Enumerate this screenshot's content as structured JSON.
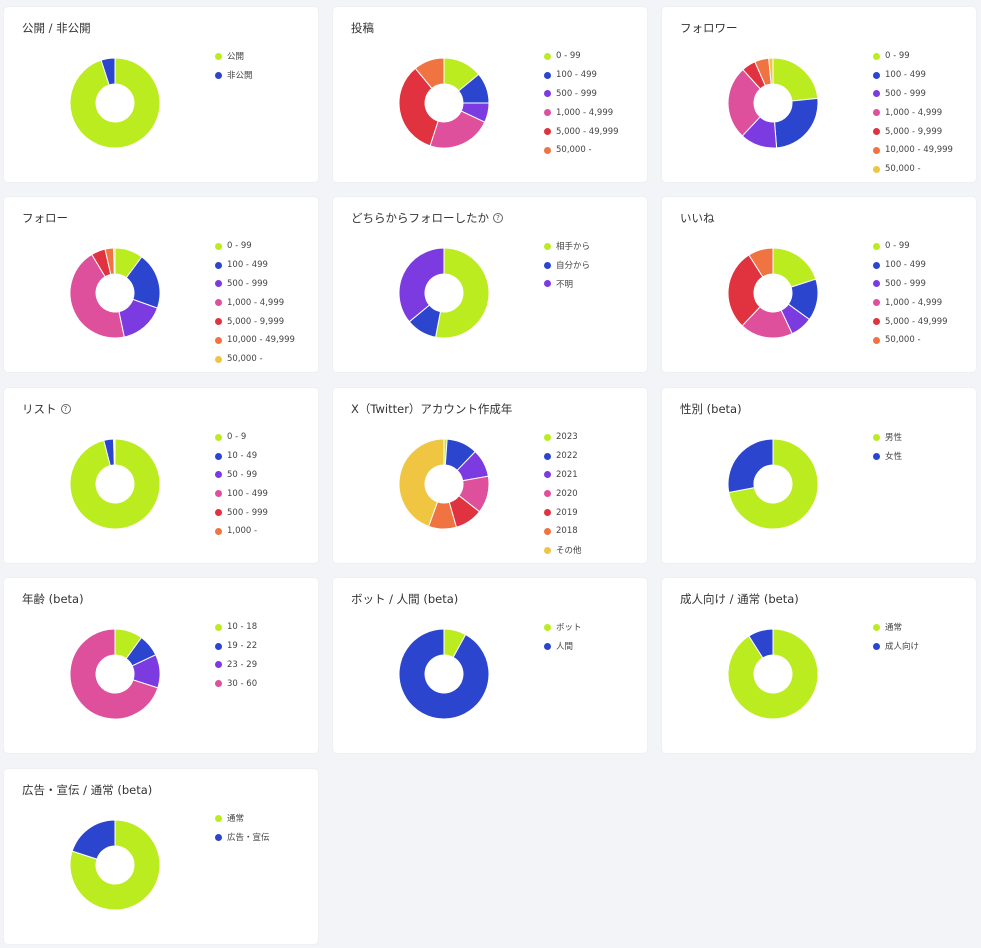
{
  "colors": {
    "lime": "#bbec1f",
    "blue": "#2b45cf",
    "purple": "#7b3be0",
    "pink": "#de4f9c",
    "red": "#e0323f",
    "orange": "#ef7441",
    "yellow": "#f0c541"
  },
  "charts": [
    {
      "title": "公開 / 非公開",
      "help": false,
      "chart_data": {
        "type": "pie",
        "labels": [
          "公開",
          "非公開"
        ],
        "colors": [
          "#bbec1f",
          "#2b45cf"
        ],
        "values": [
          95,
          5
        ]
      }
    },
    {
      "title": "投稿",
      "help": false,
      "chart_data": {
        "type": "pie",
        "labels": [
          "0 - 99",
          "100 - 499",
          "500 - 999",
          "1,000 - 4,999",
          "5,000 - 49,999",
          "50,000 -"
        ],
        "colors": [
          "#bbec1f",
          "#2b45cf",
          "#7b3be0",
          "#de4f9c",
          "#e0323f",
          "#ef7441"
        ],
        "values": [
          14,
          11,
          7,
          23,
          34,
          11
        ]
      }
    },
    {
      "title": "フォロワー",
      "help": false,
      "chart_data": {
        "type": "pie",
        "labels": [
          "0 - 99",
          "100 - 499",
          "500 - 999",
          "1,000 - 4,999",
          "5,000 - 9,999",
          "10,000 - 49,999",
          "50,000 -"
        ],
        "colors": [
          "#bbec1f",
          "#2b45cf",
          "#7b3be0",
          "#de4f9c",
          "#e0323f",
          "#ef7441",
          "#f0c541"
        ],
        "values": [
          23,
          25,
          13,
          26,
          5,
          5,
          1.5
        ]
      }
    },
    {
      "title": "フォロー",
      "help": false,
      "chart_data": {
        "type": "pie",
        "labels": [
          "0 - 99",
          "100 - 499",
          "500 - 999",
          "1,000 - 4,999",
          "5,000 - 9,999",
          "10,000 - 49,999",
          "50,000 -"
        ],
        "colors": [
          "#bbec1f",
          "#2b45cf",
          "#7b3be0",
          "#de4f9c",
          "#e0323f",
          "#ef7441",
          "#f0c541"
        ],
        "values": [
          10,
          20,
          16,
          44,
          5,
          3,
          0.5
        ]
      }
    },
    {
      "title": "どちらからフォローしたか",
      "help": true,
      "chart_data": {
        "type": "pie",
        "labels": [
          "相手から",
          "自分から",
          "不明"
        ],
        "colors": [
          "#bbec1f",
          "#2b45cf",
          "#7b3be0"
        ],
        "values": [
          53,
          11,
          36
        ]
      }
    },
    {
      "title": "いいね",
      "help": false,
      "chart_data": {
        "type": "pie",
        "labels": [
          "0 - 99",
          "100 - 499",
          "500 - 999",
          "1,000 - 4,999",
          "5,000 - 49,999",
          "50,000 -"
        ],
        "colors": [
          "#bbec1f",
          "#2b45cf",
          "#7b3be0",
          "#de4f9c",
          "#e0323f",
          "#ef7441"
        ],
        "values": [
          20,
          15,
          8,
          19,
          29,
          9
        ]
      }
    },
    {
      "title": "リスト",
      "help": true,
      "chart_data": {
        "type": "pie",
        "labels": [
          "0 - 9",
          "10 - 49",
          "50 - 99",
          "100 - 499",
          "500 - 999",
          "1,000 -"
        ],
        "colors": [
          "#bbec1f",
          "#2b45cf",
          "#7b3be0",
          "#de4f9c",
          "#e0323f",
          "#ef7441"
        ],
        "values": [
          96,
          3.5,
          0.3,
          0.1,
          0.05,
          0.05
        ]
      }
    },
    {
      "title": "X（Twitter）アカウント作成年",
      "help": false,
      "chart_data": {
        "type": "pie",
        "labels": [
          "2023",
          "2022",
          "2021",
          "2020",
          "2019",
          "2018",
          "その他"
        ],
        "colors": [
          "#bbec1f",
          "#2b45cf",
          "#7b3be0",
          "#de4f9c",
          "#e0323f",
          "#ef7441",
          "#f0c541"
        ],
        "values": [
          1,
          10,
          9,
          12,
          9,
          9,
          40
        ]
      }
    },
    {
      "title": "性別 (beta)",
      "help": false,
      "chart_data": {
        "type": "pie",
        "labels": [
          "男性",
          "女性"
        ],
        "colors": [
          "#bbec1f",
          "#2b45cf"
        ],
        "values": [
          72,
          28
        ]
      }
    },
    {
      "title": "年齢 (beta)",
      "help": false,
      "chart_data": {
        "type": "pie",
        "labels": [
          "10 - 18",
          "19 - 22",
          "23 - 29",
          "30 - 60"
        ],
        "colors": [
          "#bbec1f",
          "#2b45cf",
          "#7b3be0",
          "#de4f9c"
        ],
        "values": [
          10,
          8,
          12,
          70
        ]
      }
    },
    {
      "title": "ボット / 人間 (beta)",
      "help": false,
      "chart_data": {
        "type": "pie",
        "labels": [
          "ボット",
          "人間"
        ],
        "colors": [
          "#bbec1f",
          "#2b45cf"
        ],
        "values": [
          8,
          92
        ]
      }
    },
    {
      "title": "成人向け / 通常 (beta)",
      "help": false,
      "chart_data": {
        "type": "pie",
        "labels": [
          "通常",
          "成人向け"
        ],
        "colors": [
          "#bbec1f",
          "#2b45cf"
        ],
        "values": [
          91,
          9
        ]
      }
    },
    {
      "title": "広告・宣伝 / 通常 (beta)",
      "help": false,
      "chart_data": {
        "type": "pie",
        "labels": [
          "通常",
          "広告・宣伝"
        ],
        "colors": [
          "#bbec1f",
          "#2b45cf"
        ],
        "values": [
          80,
          20
        ]
      }
    }
  ]
}
